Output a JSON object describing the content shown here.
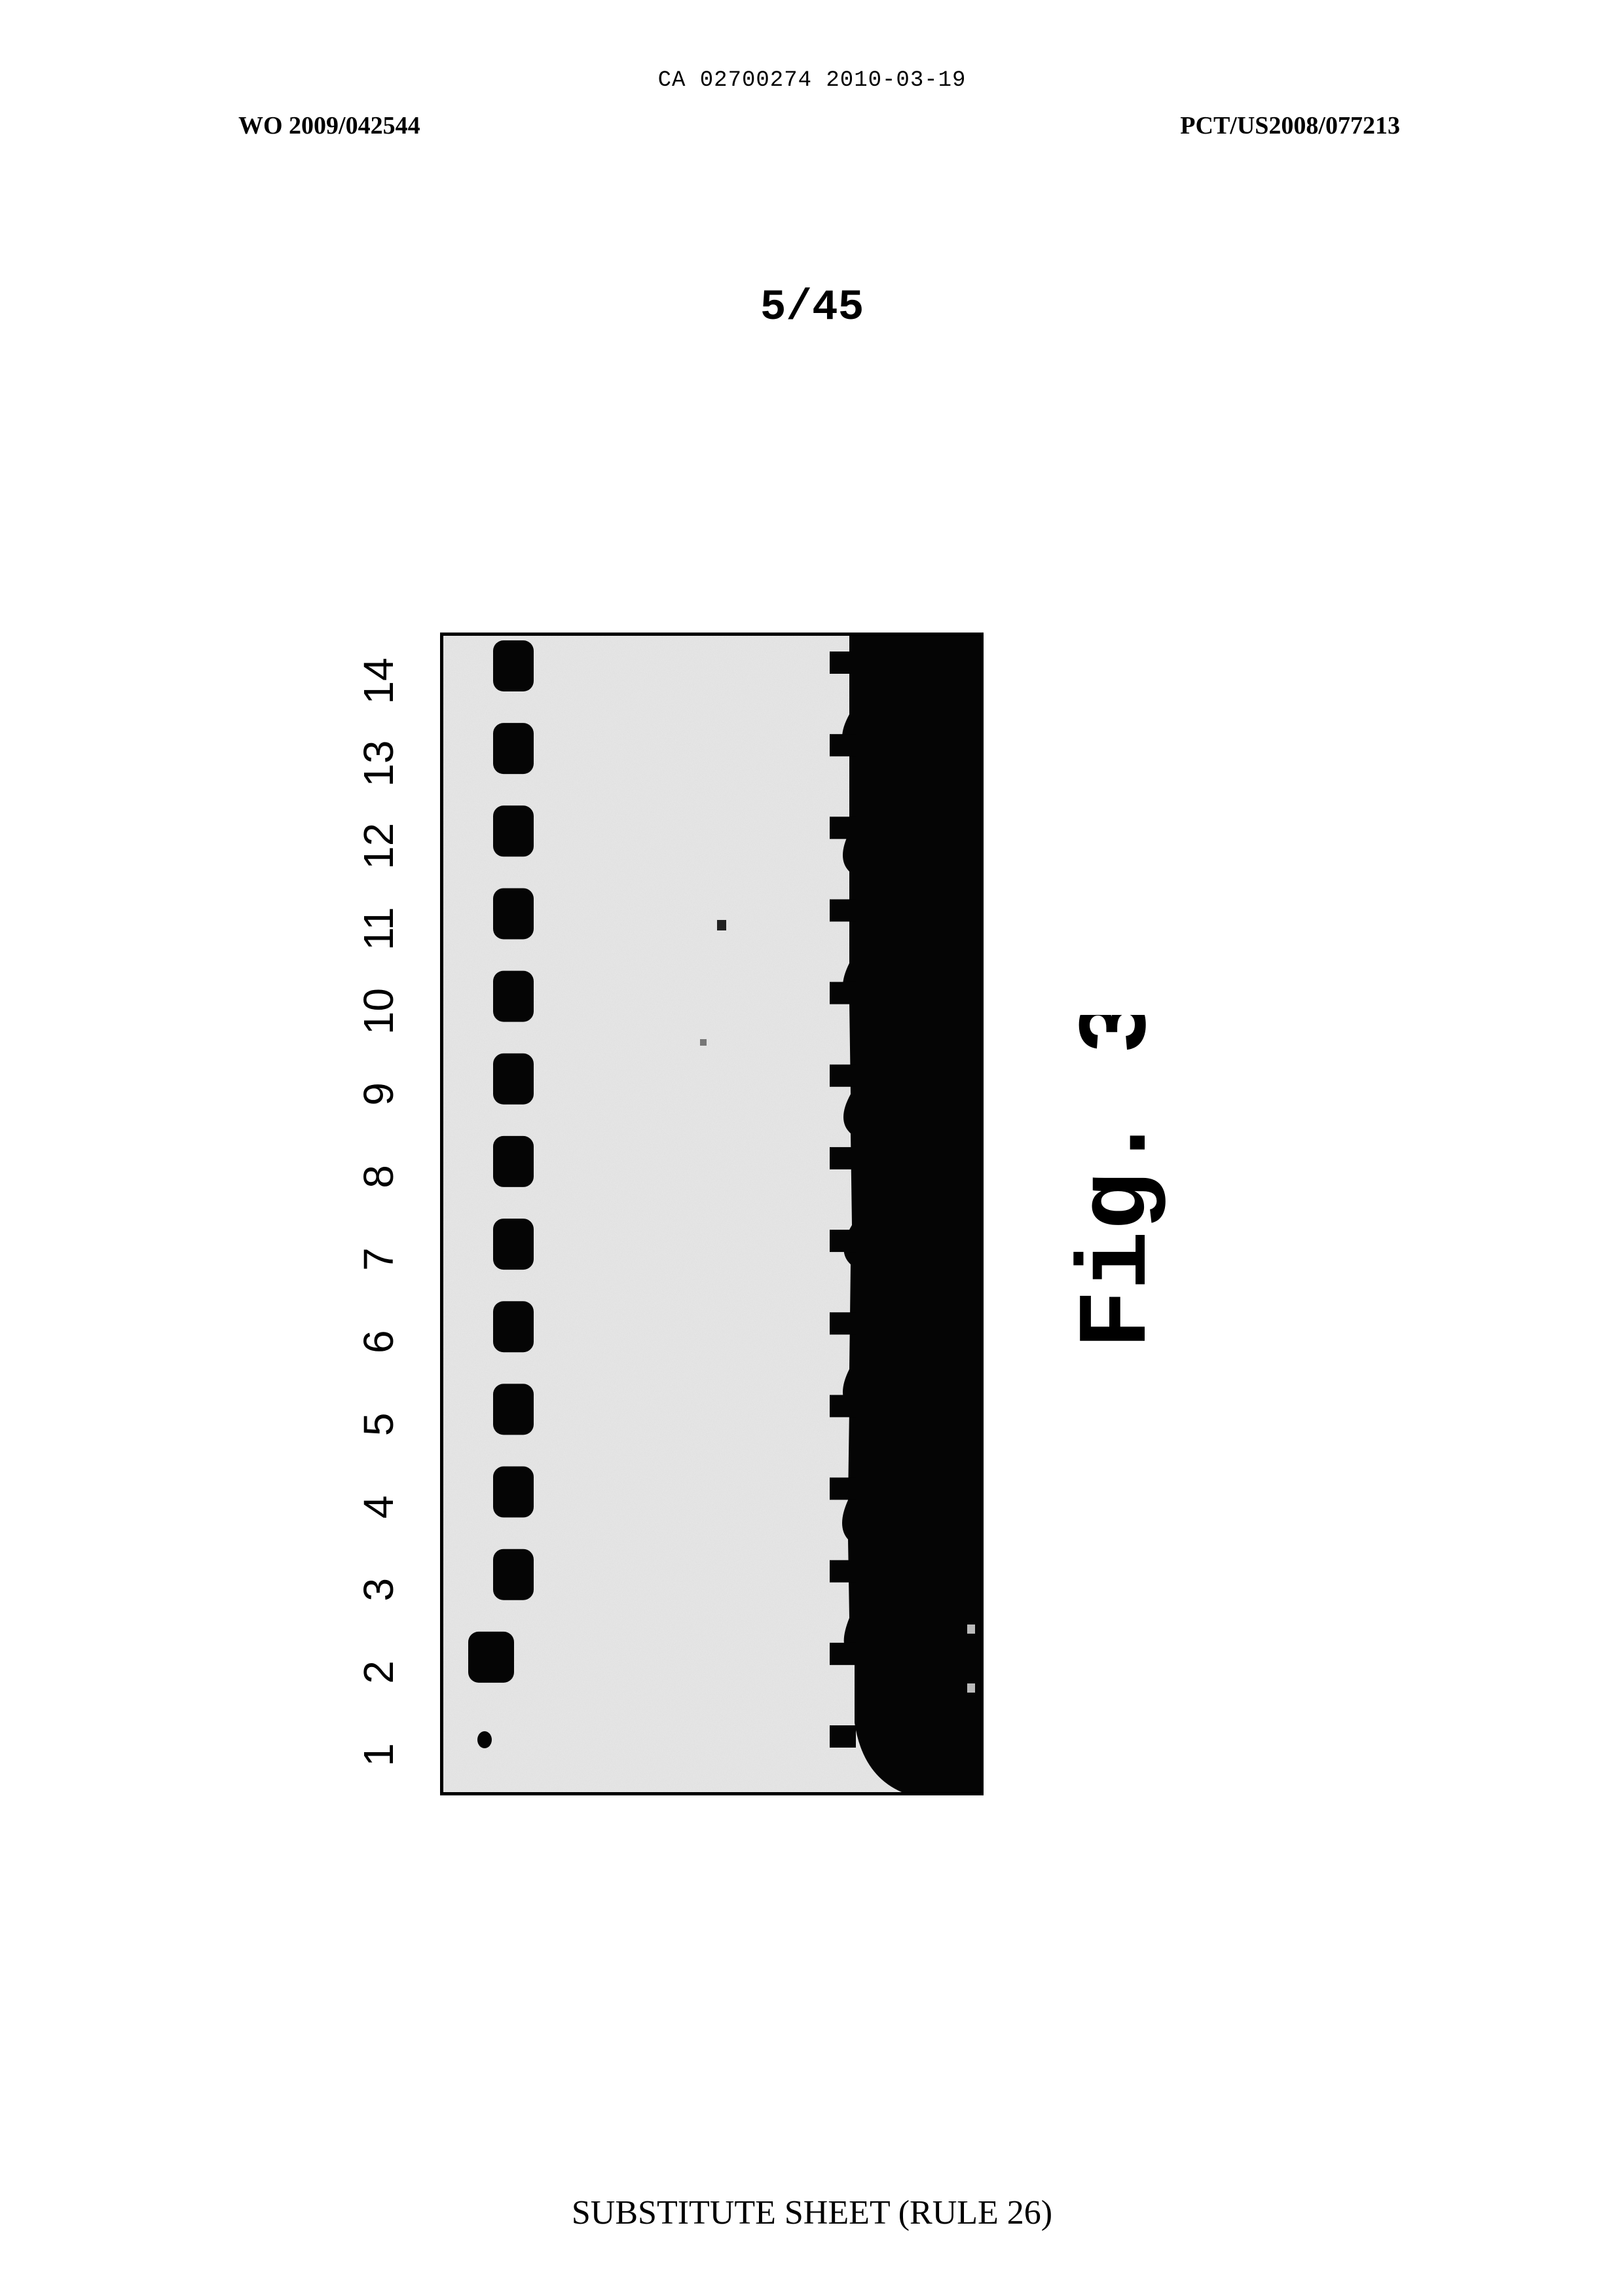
{
  "header": {
    "ca_line": "CA 02700274 2010-03-19",
    "wo_number": "WO 2009/042544",
    "pct_number": "PCT/US2008/077213"
  },
  "sheet": {
    "number": "5/45"
  },
  "figure": {
    "label": "Fig. 3",
    "lane_labels": [
      "1",
      "2",
      "3",
      "4",
      "5",
      "6",
      "7",
      "8",
      "9",
      "10",
      "11",
      "12",
      "13",
      "14"
    ]
  },
  "footer": {
    "text": "SUBSTITUTE SHEET (RULE 26)"
  }
}
